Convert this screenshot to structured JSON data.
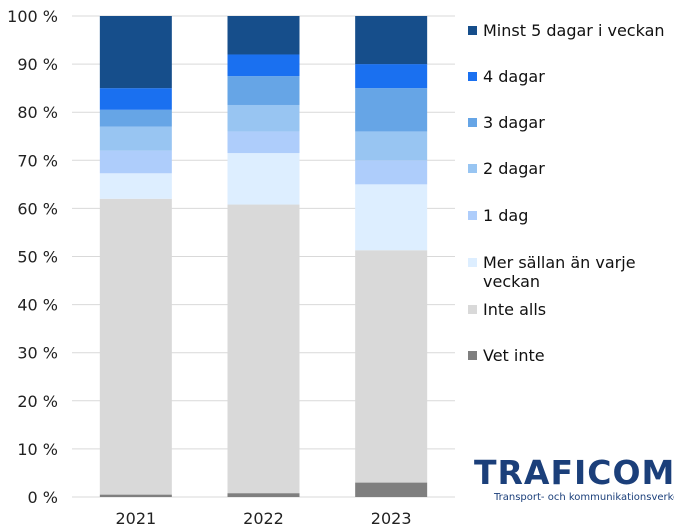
{
  "chart_data": {
    "type": "bar",
    "stacked": true,
    "categories": [
      "2021",
      "2022",
      "2023"
    ],
    "y_ticks": [
      "0 %",
      "10 %",
      "20 %",
      "30 %",
      "40 %",
      "50 %",
      "60 %",
      "70 %",
      "80 %",
      "90 %",
      "100 %"
    ],
    "ylim": [
      0,
      100
    ],
    "grid": true,
    "legend_position": "right",
    "series": [
      {
        "name": "Vet inte",
        "color": "#7f7f7f",
        "values": [
          0.5,
          0.8,
          3.0
        ]
      },
      {
        "name": "Inte alls",
        "color": "#d9d9d9",
        "values": [
          61.5,
          60.0,
          48.3
        ]
      },
      {
        "name": "Mer sällan än varje veckan",
        "color": "#ddeeff",
        "values": [
          5.3,
          10.7,
          13.7
        ]
      },
      {
        "name": "1 dag",
        "color": "#aecdfb",
        "values": [
          4.7,
          4.5,
          5.0
        ]
      },
      {
        "name": "2 dagar",
        "color": "#98c5f2",
        "values": [
          5.0,
          5.5,
          6.0
        ]
      },
      {
        "name": "3 dagar",
        "color": "#66a5e6",
        "values": [
          3.5,
          6.0,
          9.0
        ]
      },
      {
        "name": "4 dagar",
        "color": "#1a70f0",
        "values": [
          4.5,
          4.5,
          5.0
        ]
      },
      {
        "name": "Minst 5 dagar i veckan",
        "color": "#164e8b",
        "values": [
          15.0,
          8.0,
          10.0
        ]
      }
    ],
    "legend_lines": {
      "Mer sällan än varje veckan": [
        "Mer sällan än varje",
        "veckan"
      ]
    }
  },
  "logo": {
    "wordmark": "TRAFICOM",
    "subtitle": "Transport- och kommunikationsverket"
  }
}
